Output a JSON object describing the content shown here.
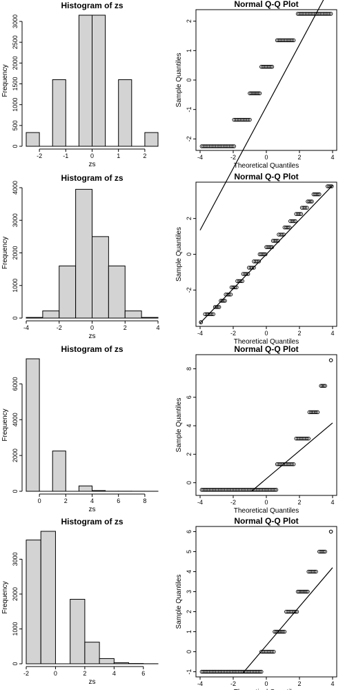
{
  "chart_data": [
    {
      "type": "bar",
      "title": "Histogram of zs",
      "xlabel": "zs",
      "ylabel": "Frequency",
      "bins": [
        [
          -2.5,
          -2,
          330
        ],
        [
          -2,
          -1.5,
          0
        ],
        [
          -1.5,
          -1,
          1600
        ],
        [
          -1,
          -0.5,
          0
        ],
        [
          -0.5,
          0,
          3150
        ],
        [
          0,
          0.5,
          3150
        ],
        [
          0.5,
          1,
          0
        ],
        [
          1,
          1.5,
          1600
        ],
        [
          1.5,
          2,
          0
        ],
        [
          2,
          2.5,
          330
        ]
      ],
      "xlim": [
        -2.5,
        2.5
      ],
      "ylim": [
        0,
        3150
      ],
      "xticks": [
        -2,
        -1,
        0,
        1,
        2
      ],
      "yticks": [
        0,
        500,
        1000,
        1500,
        2000,
        2500,
        3000
      ],
      "ytick_labels": [
        "0",
        "500",
        "1000",
        "1500",
        "2000",
        "2500",
        "3000"
      ]
    },
    {
      "type": "scatter",
      "title": "Normal Q-Q Plot",
      "xlabel": "Theoretical Quantiles",
      "ylabel": "Sample Quantiles",
      "xlim": [
        -4,
        4
      ],
      "ylim": [
        -2.25,
        2.25
      ],
      "xticks": [
        -4,
        -2,
        0,
        2,
        4
      ],
      "yticks": [
        -2,
        -1,
        0,
        1,
        2
      ],
      "levels": [
        [
          -2.25,
          -3.9,
          -1.95
        ],
        [
          -1.35,
          -1.95,
          -1.0
        ],
        [
          -0.45,
          -1.0,
          -0.4
        ],
        [
          0.45,
          -0.3,
          0.35
        ],
        [
          1.35,
          0.65,
          1.65
        ],
        [
          2.25,
          1.9,
          3.9
        ]
      ],
      "line": [
        [
          -4,
          -5.1
        ],
        [
          4,
          3.3
        ]
      ]
    },
    {
      "type": "bar",
      "title": "Histogram of zs",
      "xlabel": "zs",
      "ylabel": "Frequency",
      "bins": [
        [
          -4,
          -3,
          20
        ],
        [
          -3,
          -2,
          220
        ],
        [
          -2,
          -1,
          1600
        ],
        [
          -1,
          0,
          3950
        ],
        [
          0,
          1,
          2500
        ],
        [
          1,
          2,
          1600
        ],
        [
          2,
          3,
          220
        ],
        [
          3,
          4,
          20
        ]
      ],
      "xlim": [
        -4,
        4
      ],
      "ylim": [
        0,
        4000
      ],
      "xticks": [
        -4,
        -2,
        0,
        2,
        4
      ],
      "yticks": [
        0,
        1000,
        2000,
        3000,
        4000
      ],
      "ytick_labels": [
        "0",
        "1000",
        "2000",
        "3000",
        "4000"
      ]
    },
    {
      "type": "scatter",
      "title": "Normal Q-Q Plot",
      "xlabel": "Theoretical Quantiles",
      "ylabel": "Sample Quantiles",
      "xlim": [
        -4,
        4
      ],
      "ylim": [
        -3.8,
        3.8
      ],
      "xticks": [
        -4,
        -2,
        0,
        2,
        4
      ],
      "yticks": [
        -2,
        0,
        2
      ],
      "ytick_labels": [
        "-2",
        "0",
        "2"
      ],
      "levels": [
        [
          -3.8,
          -3.95,
          -3.95
        ],
        [
          -3.35,
          -3.7,
          -3.2
        ],
        [
          -2.95,
          -3.1,
          -2.85
        ],
        [
          -2.6,
          -2.75,
          -2.5
        ],
        [
          -2.25,
          -2.45,
          -2.15
        ],
        [
          -1.85,
          -2.1,
          -1.8
        ],
        [
          -1.5,
          -1.75,
          -1.45
        ],
        [
          -1.1,
          -1.4,
          -1.1
        ],
        [
          -0.75,
          -1.05,
          -0.75
        ],
        [
          -0.4,
          -0.75,
          -0.45
        ],
        [
          0,
          -0.4,
          -0.05
        ],
        [
          0.4,
          0.0,
          0.35
        ],
        [
          0.75,
          0.4,
          0.7
        ],
        [
          1.1,
          0.75,
          1.05
        ],
        [
          1.5,
          1.1,
          1.4
        ],
        [
          1.85,
          1.45,
          1.75
        ],
        [
          2.25,
          1.8,
          2.1
        ],
        [
          2.6,
          2.15,
          2.45
        ],
        [
          2.95,
          2.5,
          2.75
        ],
        [
          3.35,
          2.85,
          3.2
        ],
        [
          3.8,
          3.7,
          3.95
        ]
      ],
      "line": [
        [
          -4,
          -3.85
        ],
        [
          4,
          3.85
        ]
      ]
    },
    {
      "type": "bar",
      "title": "Histogram of zs",
      "xlabel": "zs",
      "ylabel": "Frequency",
      "bins": [
        [
          -1,
          0,
          7400
        ],
        [
          0,
          1,
          0
        ],
        [
          1,
          2,
          2250
        ],
        [
          2,
          3,
          0
        ],
        [
          3,
          4,
          300
        ],
        [
          4,
          5,
          40
        ],
        [
          5,
          6,
          5
        ],
        [
          6,
          7,
          5
        ],
        [
          7,
          8,
          3
        ],
        [
          8,
          9,
          2
        ]
      ],
      "xlim": [
        -1,
        9
      ],
      "ylim": [
        0,
        7400
      ],
      "xticks": [
        0,
        2,
        4,
        6,
        8
      ],
      "yticks": [
        0,
        2000,
        4000,
        6000
      ],
      "ytick_labels": [
        "0",
        "2000",
        "4000",
        "6000"
      ]
    },
    {
      "type": "scatter",
      "title": "Normal Q-Q Plot",
      "xlabel": "Theoretical Quantiles",
      "ylabel": "Sample Quantiles",
      "xlim": [
        -4,
        4
      ],
      "ylim": [
        -0.6,
        8.7
      ],
      "xticks": [
        -4,
        -2,
        0,
        2,
        4
      ],
      "yticks": [
        0,
        2,
        4,
        6,
        8
      ],
      "levels": [
        [
          -0.5,
          -3.9,
          0.6
        ],
        [
          1.3,
          0.65,
          1.65
        ],
        [
          3.1,
          1.8,
          2.55
        ],
        [
          4.95,
          2.6,
          3.1
        ],
        [
          6.8,
          3.3,
          3.55
        ],
        [
          8.6,
          3.9,
          3.9
        ]
      ],
      "line": [
        [
          -0.9,
          -0.6
        ],
        [
          4,
          4.2
        ]
      ]
    },
    {
      "type": "bar",
      "title": "Histogram of zs",
      "xlabel": "zs",
      "ylabel": "Frequency",
      "bins": [
        [
          -2,
          -1,
          3550
        ],
        [
          -1,
          0,
          3800
        ],
        [
          0,
          1,
          0
        ],
        [
          1,
          2,
          1850
        ],
        [
          2,
          3,
          620
        ],
        [
          3,
          4,
          150
        ],
        [
          4,
          5,
          30
        ],
        [
          5,
          6,
          8
        ],
        [
          6,
          7,
          2
        ]
      ],
      "xlim": [
        -2,
        7
      ],
      "ylim": [
        0,
        3800
      ],
      "xticks": [
        -2,
        0,
        2,
        4,
        6
      ],
      "yticks": [
        0,
        1000,
        2000,
        3000
      ],
      "ytick_labels": [
        "0",
        "1000",
        "2000",
        "3000"
      ]
    },
    {
      "type": "scatter",
      "title": "Normal Q-Q Plot",
      "xlabel": "Theoretical Quantiles",
      "ylabel": "Sample Quantiles",
      "xlim": [
        -4,
        4
      ],
      "ylim": [
        -1.05,
        6.05
      ],
      "xticks": [
        -4,
        -2,
        0,
        2,
        4
      ],
      "yticks": [
        -1,
        0,
        1,
        2,
        3,
        4,
        5,
        6
      ],
      "levels": [
        [
          -1,
          -3.9,
          -0.3
        ],
        [
          0,
          -0.3,
          0.45
        ],
        [
          1,
          0.5,
          1.1
        ],
        [
          2,
          1.2,
          1.85
        ],
        [
          3,
          1.9,
          2.5
        ],
        [
          4,
          2.55,
          3.0
        ],
        [
          5,
          3.2,
          3.55
        ],
        [
          6,
          3.9,
          3.9
        ]
      ],
      "line": [
        [
          -1.4,
          -1.05
        ],
        [
          4,
          4.2
        ]
      ]
    }
  ]
}
